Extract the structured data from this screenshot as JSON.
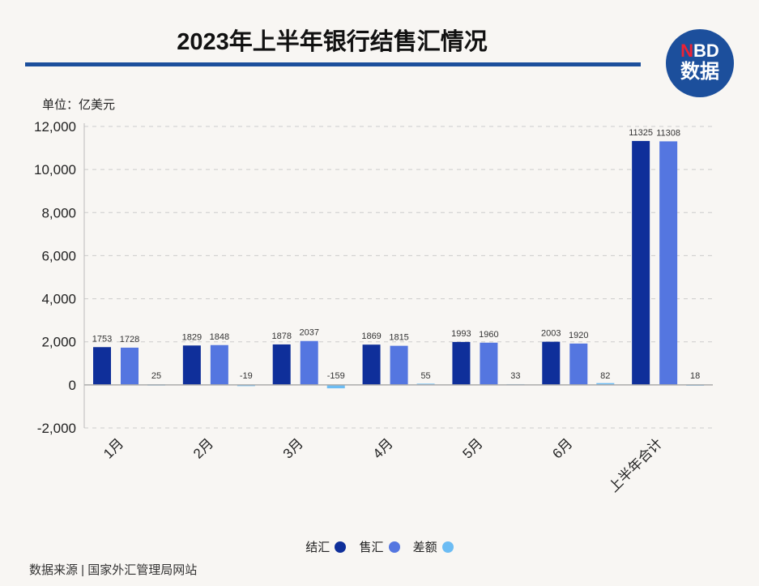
{
  "title": "2023年上半年银行结售汇情况",
  "logo": {
    "top_n": "N",
    "top_rest": "BD",
    "bottom": "数据"
  },
  "source": "数据来源 | 国家外汇管理局网站",
  "chart_data": {
    "type": "bar",
    "title": "2023年上半年银行结售汇情况",
    "ylabel": "单位：亿美元",
    "unit_label": "单位：亿美元",
    "categories": [
      "1月",
      "2月",
      "3月",
      "4月",
      "5月",
      "6月",
      "上半年合计"
    ],
    "ylim": [
      -2000,
      12000
    ],
    "yticks": [
      -2000,
      0,
      2000,
      4000,
      6000,
      8000,
      10000,
      12000
    ],
    "ytick_labels": [
      "-2,000",
      "0",
      "2,000",
      "4,000",
      "6,000",
      "8,000",
      "10,000",
      "12,000"
    ],
    "grid": true,
    "legend_position": "bottom",
    "series": [
      {
        "name": "结汇",
        "color": "#0f2f9a",
        "values": [
          1753,
          1829,
          1878,
          1869,
          1993,
          2003,
          11325
        ]
      },
      {
        "name": "售汇",
        "color": "#5476e0",
        "values": [
          1728,
          1848,
          2037,
          1815,
          1960,
          1920,
          11308
        ]
      },
      {
        "name": "差额",
        "color": "#6cbcf3",
        "values": [
          25,
          -19,
          -159,
          55,
          33,
          82,
          18
        ]
      }
    ]
  }
}
